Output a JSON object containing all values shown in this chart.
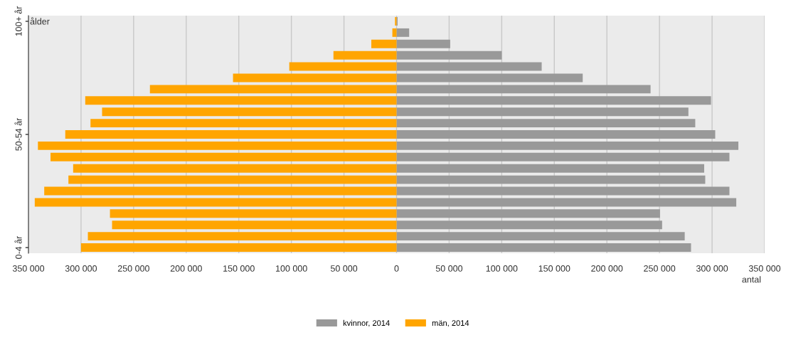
{
  "chart_data": {
    "type": "bar",
    "orientation": "horizontal",
    "stacked": true,
    "categories": [
      "100+ år",
      null,
      null,
      null,
      null,
      null,
      null,
      null,
      null,
      null,
      "50-54 år",
      null,
      null,
      null,
      null,
      null,
      null,
      null,
      null,
      null,
      "0-4 år"
    ],
    "series": [
      {
        "name": "kvinnor, 2014",
        "color": "#999999",
        "values": [
          1000,
          12000,
          51000,
          100000,
          138000,
          177000,
          241500,
          299000,
          277500,
          284000,
          303000,
          325000,
          316500,
          292500,
          293500,
          316500,
          323000,
          250500,
          252500,
          274000,
          280000
        ]
      },
      {
        "name": "män, 2014",
        "color": "#ffa500",
        "values": [
          -1500,
          -4000,
          -24000,
          -60000,
          -102000,
          -155500,
          -234500,
          -296000,
          -280000,
          -291000,
          -315000,
          -341000,
          -329000,
          -307500,
          -312000,
          -335000,
          -344000,
          -272500,
          -270500,
          -293500,
          -300000
        ]
      }
    ],
    "xlim": [
      -350000,
      350000
    ],
    "xticks": [
      {
        "value": -350000,
        "label": "350 000"
      },
      {
        "value": -300000,
        "label": "300 000"
      },
      {
        "value": -250000,
        "label": "250 000"
      },
      {
        "value": -200000,
        "label": "200 000"
      },
      {
        "value": -150000,
        "label": "150 000"
      },
      {
        "value": -100000,
        "label": "100 000"
      },
      {
        "value": -50000,
        "label": "50 000"
      },
      0,
      {
        "value": 50000,
        "label": "50 000"
      },
      {
        "value": 100000,
        "label": "100 000"
      },
      {
        "value": 150000,
        "label": "150 000"
      },
      {
        "value": 200000,
        "label": "200 000"
      },
      {
        "value": 250000,
        "label": "250 000"
      },
      {
        "value": 300000,
        "label": "300 000"
      },
      {
        "value": 350000,
        "label": "350 000"
      }
    ],
    "xlabel": "antal",
    "ylabel": "ålder",
    "grid": "x",
    "legend": "bottom"
  }
}
